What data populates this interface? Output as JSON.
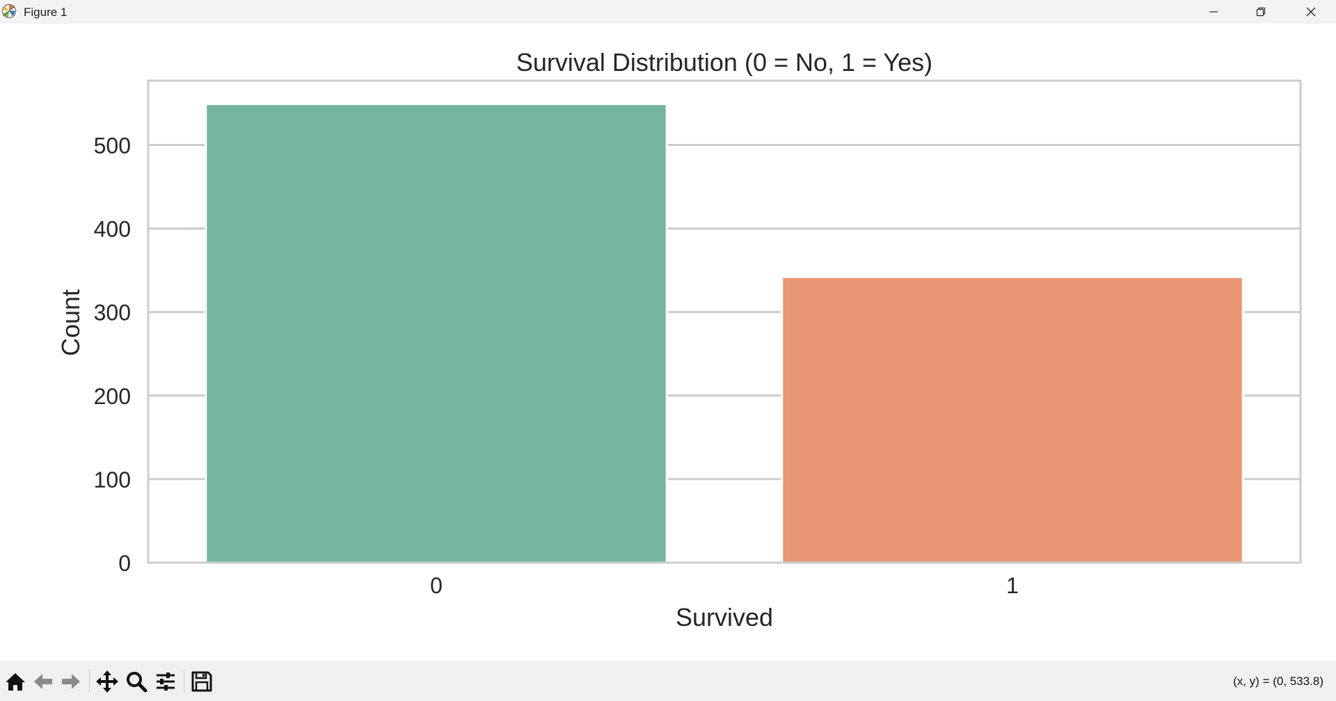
{
  "window": {
    "title": "Figure 1",
    "minimize_icon": "minimize-icon",
    "maximize_icon": "restore-icon",
    "close_icon": "close-icon"
  },
  "toolbar": {
    "tools": [
      "home-icon",
      "back-arrow-icon",
      "forward-arrow-icon",
      "pan-icon",
      "zoom-icon",
      "configure-subplots-icon",
      "save-icon"
    ],
    "coords_text": "(x, y) = (0, 533.8)"
  },
  "chart_data": {
    "type": "bar",
    "title": "Survival Distribution (0 = No, 1 = Yes)",
    "xlabel": "Survived",
    "ylabel": "Count",
    "categories": [
      "0",
      "1"
    ],
    "values": [
      549,
      342
    ],
    "colors": [
      "#75b5a0",
      "#e89673"
    ],
    "ylim": [
      0,
      577
    ],
    "yticks": [
      0,
      100,
      200,
      300,
      400,
      500
    ],
    "grid": true,
    "grid_axis": "y"
  }
}
